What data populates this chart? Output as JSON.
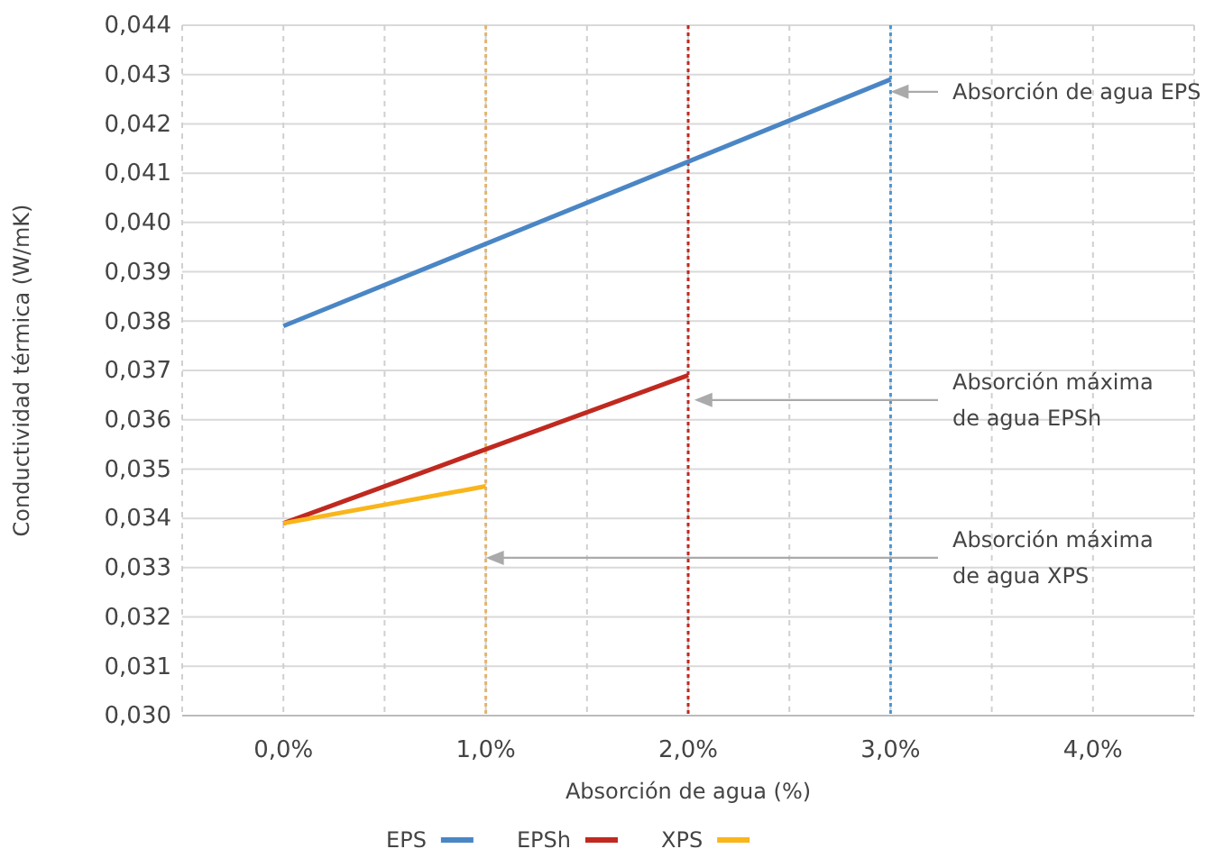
{
  "chart_data": {
    "type": "line",
    "xlabel": "Absorción de agua (%)",
    "ylabel": "Conductividad térmica (W/mK)",
    "xlim": [
      -0.5,
      4.5
    ],
    "xticks": [
      {
        "value": -0.5,
        "label": null
      },
      {
        "value": 0,
        "label": "0,0%"
      },
      {
        "value": 0.5,
        "label": null
      },
      {
        "value": 1,
        "label": "1,0%"
      },
      {
        "value": 1.5,
        "label": null
      },
      {
        "value": 2,
        "label": "2,0%"
      },
      {
        "value": 2.5,
        "label": null
      },
      {
        "value": 3,
        "label": "3,0%"
      },
      {
        "value": 3.5,
        "label": null
      },
      {
        "value": 4,
        "label": "4,0%"
      },
      {
        "value": 4.5,
        "label": null
      }
    ],
    "ylim": [
      0.03,
      0.044
    ],
    "yticks": [
      {
        "value": 0.03,
        "label": "0,030"
      },
      {
        "value": 0.031,
        "label": "0,031"
      },
      {
        "value": 0.032,
        "label": "0,032"
      },
      {
        "value": 0.033,
        "label": "0,033"
      },
      {
        "value": 0.034,
        "label": "0,034"
      },
      {
        "value": 0.035,
        "label": "0,035"
      },
      {
        "value": 0.036,
        "label": "0,036"
      },
      {
        "value": 0.037,
        "label": "0,037"
      },
      {
        "value": 0.038,
        "label": "0,038"
      },
      {
        "value": 0.039,
        "label": "0,039"
      },
      {
        "value": 0.04,
        "label": "0,040"
      },
      {
        "value": 0.041,
        "label": "0,041"
      },
      {
        "value": 0.042,
        "label": "0,042"
      },
      {
        "value": 0.043,
        "label": "0,043"
      },
      {
        "value": 0.044,
        "label": "0,044"
      }
    ],
    "grid": true,
    "legend": "bottom",
    "marker": "none",
    "line_style": "solid",
    "series": [
      {
        "name": "EPS",
        "color": "#4a86c5",
        "x": [
          0,
          3
        ],
        "values": [
          0.0379,
          0.0429
        ]
      },
      {
        "name": "EPSh",
        "color": "#c0291f",
        "x": [
          0,
          2
        ],
        "values": [
          0.0339,
          0.0369
        ]
      },
      {
        "name": "XPS",
        "color": "#f9b51a",
        "x": [
          0,
          1
        ],
        "values": [
          0.0339,
          0.03465
        ]
      }
    ],
    "ref_lines": [
      {
        "axis": "x",
        "value": 1,
        "color": "#e3b570",
        "line_style": "dotted"
      },
      {
        "axis": "x",
        "value": 2,
        "color": "#c0291f",
        "line_style": "dotted"
      },
      {
        "axis": "x",
        "value": 3,
        "color": "#4a96d6",
        "line_style": "dotted"
      }
    ],
    "annotations": [
      {
        "text": "Absorción de agua EPS",
        "x": 3,
        "y": 0.04265
      },
      {
        "text": "Absorción máxima\nde agua EPSh",
        "x": 2.03,
        "y": 0.0364
      },
      {
        "text": "Absorción máxima\nde agua XPS",
        "x": 1,
        "y": 0.0332
      }
    ]
  }
}
